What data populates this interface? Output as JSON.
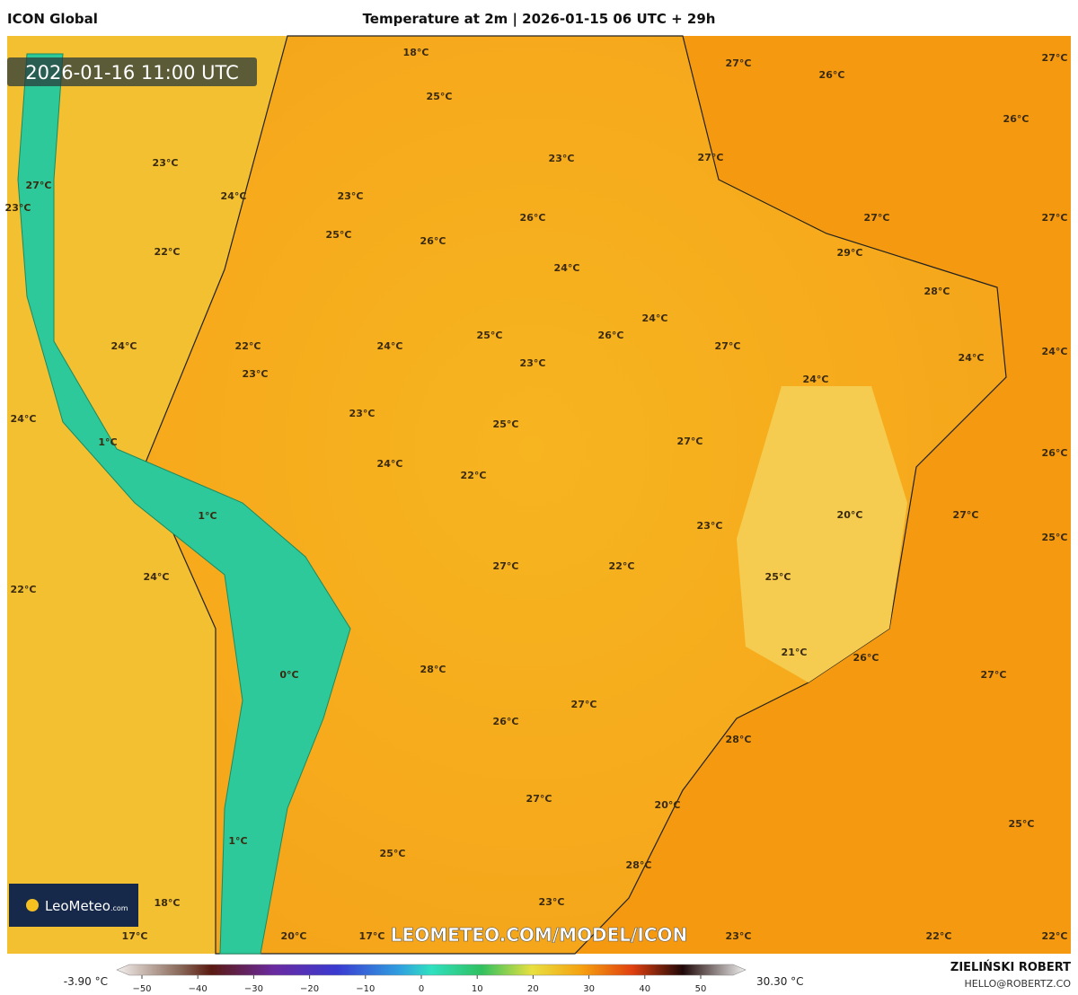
{
  "header": {
    "model": "ICON Global",
    "title": "Temperature at 2m | 2026-01-15 06 UTC + 29h"
  },
  "timestamp": "2026-01-16 11:00 UTC",
  "map": {
    "labels": [
      "18°C",
      "27°C",
      "26°C",
      "27°C",
      "25°C",
      "26°C",
      "23°C",
      "27°C",
      "23°C",
      "27°C",
      "23°C",
      "24°C",
      "23°C",
      "26°C",
      "27°C",
      "27°C",
      "25°C",
      "26°C",
      "22°C",
      "29°C",
      "24°C",
      "28°C",
      "24°C",
      "22°C",
      "24°C",
      "25°C",
      "26°C",
      "27°C",
      "24°C",
      "24°C",
      "24°C",
      "23°C",
      "23°C",
      "24°C",
      "24°C",
      "23°C",
      "25°C",
      "27°C",
      "1°C",
      "24°C",
      "22°C",
      "26°C",
      "1°C",
      "20°C",
      "27°C",
      "23°C",
      "25°C",
      "27°C",
      "22°C",
      "24°C",
      "25°C",
      "22°C",
      "21°C",
      "26°C",
      "0°C",
      "28°C",
      "27°C",
      "27°C",
      "26°C",
      "28°C",
      "27°C",
      "20°C",
      "25°C",
      "1°C",
      "25°C",
      "28°C",
      "18°C",
      "23°C",
      "17°C",
      "20°C",
      "17°C",
      "23°C",
      "22°C",
      "22°C"
    ]
  },
  "watermark": "LEOMETEO.COM/MODEL/ICON",
  "logo": {
    "brand": "LeoMeteo",
    "suffix": ".com"
  },
  "colorbar": {
    "min": "-3.90 °C",
    "max": "30.30 °C",
    "ticks": [
      "−50",
      "−40",
      "−30",
      "−20",
      "−10",
      "0",
      "10",
      "20",
      "30",
      "40",
      "50"
    ]
  },
  "credits": {
    "author": "ZIELIŃSKI ROBERT",
    "contact": "HELLO@ROBERTZ.CO"
  }
}
